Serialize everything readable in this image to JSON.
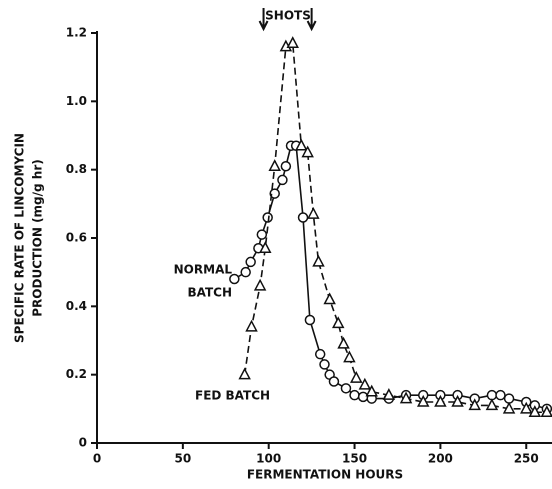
{
  "chart_data": {
    "type": "line",
    "xlabel": "FERMENTATION HOURS",
    "ylabel": [
      "SPECIFIC RATE OF LINCOMYCIN",
      "PRODUCTION (mg/g hr)"
    ],
    "annotation": "SHOTS",
    "shot_times": [
      97,
      125
    ],
    "xlim": [
      0,
      265
    ],
    "ylim": [
      0,
      1.2
    ],
    "xticks": [
      0,
      50,
      100,
      150,
      200,
      250
    ],
    "yticks": [
      0,
      0.2,
      0.4,
      0.6,
      0.8,
      {
        "value": 1,
        "label": "1.0"
      },
      1.2
    ],
    "series": [
      {
        "name": [
          "NORMAL",
          "BATCH"
        ],
        "color": "#111",
        "marker": "circle",
        "dashed": false,
        "x": [
          80,
          86.6,
          89.5,
          94,
          96,
          99.4,
          103.5,
          108,
          110,
          113,
          116,
          120,
          124,
          130,
          132.5,
          135.5,
          138,
          145,
          150,
          155,
          160,
          170,
          180,
          190,
          200,
          210,
          220,
          230,
          235,
          240,
          250,
          255,
          262
        ],
        "values": [
          0.48,
          0.5,
          0.53,
          0.57,
          0.61,
          0.66,
          0.73,
          0.77,
          0.81,
          0.87,
          0.87,
          0.66,
          0.36,
          0.26,
          0.23,
          0.2,
          0.18,
          0.16,
          0.14,
          0.135,
          0.13,
          0.13,
          0.14,
          0.14,
          0.14,
          0.14,
          0.13,
          0.14,
          0.14,
          0.13,
          0.12,
          0.11,
          0.1
        ]
      },
      {
        "name": [
          "FED BATCH"
        ],
        "color": "#111",
        "marker": "triangle",
        "dashed": true,
        "x": [
          86,
          90,
          95,
          98,
          103.5,
          110,
          114,
          119,
          122.7,
          126,
          129,
          135.5,
          140.5,
          143.6,
          147,
          151,
          156,
          160,
          170,
          180,
          190,
          200,
          210,
          220,
          230,
          240,
          250,
          255,
          262
        ],
        "values": [
          0.2,
          0.34,
          0.46,
          0.57,
          0.81,
          1.16,
          1.17,
          0.87,
          0.85,
          0.67,
          0.53,
          0.42,
          0.35,
          0.29,
          0.25,
          0.19,
          0.17,
          0.15,
          0.14,
          0.13,
          0.12,
          0.12,
          0.12,
          0.11,
          0.11,
          0.1,
          0.1,
          0.09,
          0.09
        ]
      }
    ]
  }
}
